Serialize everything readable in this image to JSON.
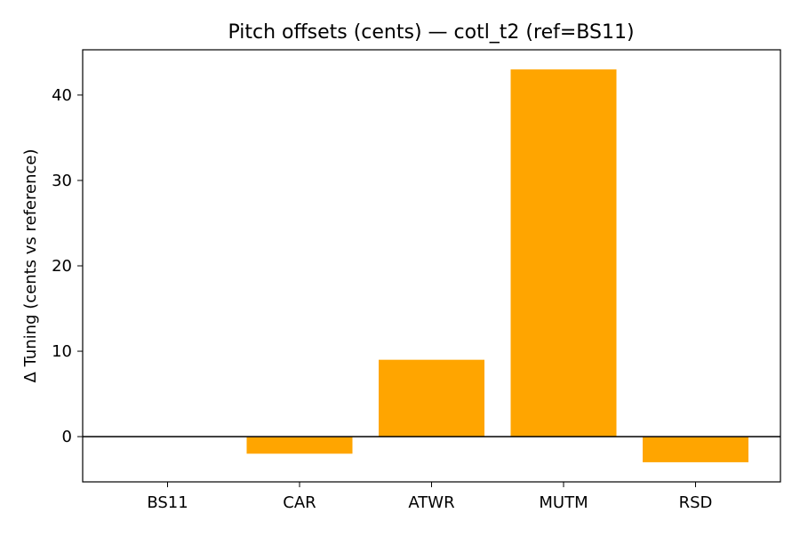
{
  "chart_data": {
    "type": "bar",
    "title": "Pitch offsets (cents) — cotl_t2 (ref=BS11)",
    "xlabel": "",
    "ylabel": "Δ Tuning (cents vs reference)",
    "categories": [
      "BS11",
      "CAR",
      "ATWR",
      "MUTM",
      "RSD"
    ],
    "values": [
      0,
      -2,
      9,
      43,
      -3
    ],
    "ylim": [
      -5.3,
      45.3
    ],
    "yticks": [
      0,
      10,
      20,
      30,
      40
    ],
    "zero_line": true,
    "grid": false,
    "bar_color": "#ffa500"
  }
}
